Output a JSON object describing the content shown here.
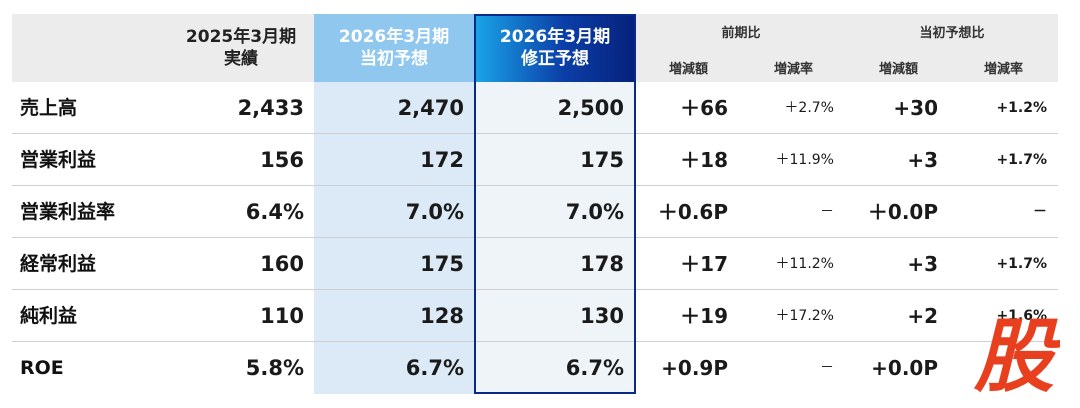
{
  "header": {
    "col_2025_l1": "2025年3月期",
    "col_2025_l2": "実績",
    "col_init_l1": "2026年3月期",
    "col_init_l2": "当初予想",
    "col_rev_l1": "2026年3月期",
    "col_rev_l2": "修正予想",
    "group_prev": "前期比",
    "group_init": "当初予想比",
    "sub_diff": "増減額",
    "sub_rate": "増減率"
  },
  "rows": [
    {
      "label": "売上高",
      "y2025": "2,433",
      "init": "2,470",
      "rev": "2,500",
      "prev_diff": "＋66",
      "prev_rate": "＋2.7%",
      "init_diff": "+30",
      "init_rate": "+1.2%"
    },
    {
      "label": "営業利益",
      "y2025": "156",
      "init": "172",
      "rev": "175",
      "prev_diff": "＋18",
      "prev_rate": "＋11.9%",
      "init_diff": "+3",
      "init_rate": "+1.7%"
    },
    {
      "label": "営業利益率",
      "y2025": "6.4%",
      "init": "7.0%",
      "rev": "7.0%",
      "prev_diff": "＋0.6P",
      "prev_rate": "－",
      "init_diff": "＋0.0P",
      "init_rate": "－"
    },
    {
      "label": "経常利益",
      "y2025": "160",
      "init": "175",
      "rev": "178",
      "prev_diff": "＋17",
      "prev_rate": "＋11.2%",
      "init_diff": "+3",
      "init_rate": "+1.7%"
    },
    {
      "label": "純利益",
      "y2025": "110",
      "init": "128",
      "rev": "130",
      "prev_diff": "＋19",
      "prev_rate": "＋17.2%",
      "init_diff": "+2",
      "init_rate": "+1.6%"
    },
    {
      "label": "ROE",
      "y2025": "5.8%",
      "init": "6.7%",
      "rev": "6.7%",
      "prev_diff": "+0.9P",
      "prev_rate": "－",
      "init_diff": "+0.0P",
      "init_rate": ""
    }
  ],
  "watermark": {
    "char": "股",
    "color": "#e8401e"
  }
}
